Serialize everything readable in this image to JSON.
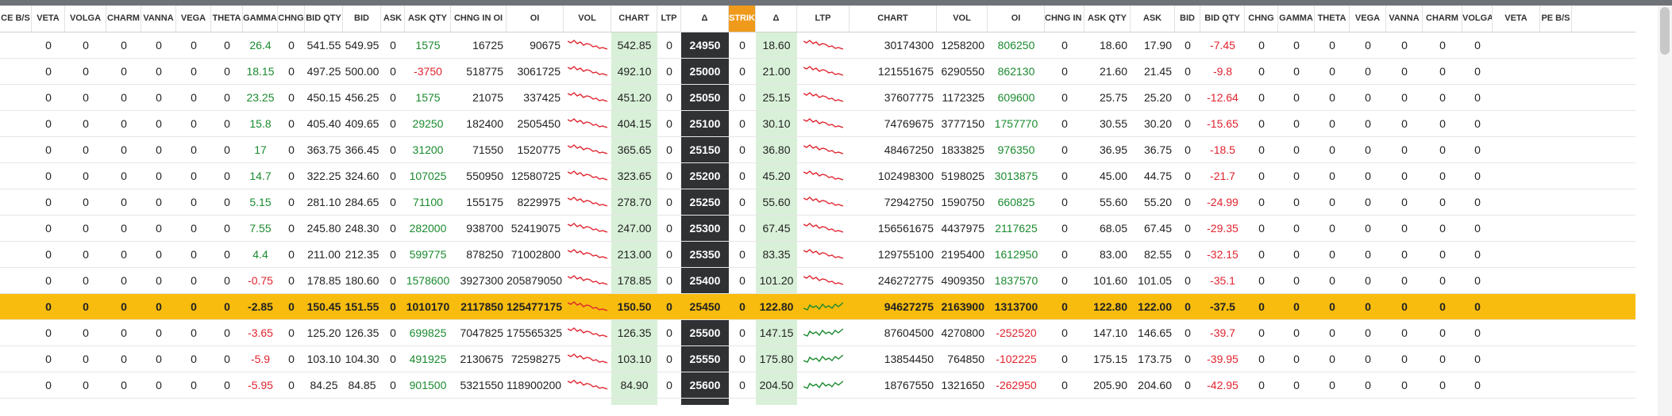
{
  "headers": [
    "CE B/S",
    "VETA",
    "VOLGA",
    "CHARM",
    "VANNA",
    "VEGA",
    "THETA",
    "GAMMA",
    "CHNG",
    "BID QTY",
    "BID",
    "ASK",
    "ASK QTY",
    "CHNG IN OI",
    "OI",
    "VOL",
    "CHART",
    "LTP",
    "Δ",
    "STRIKE",
    "Δ",
    "LTP",
    "CHART",
    "VOL",
    "OI",
    "CHNG IN OI",
    "ASK QTY",
    "ASK",
    "BID",
    "BID QTY",
    "CHNG",
    "GAMMA",
    "THETA",
    "VEGA",
    "VANNA",
    "CHARM",
    "VOLGA",
    "VETA",
    "PE B/S"
  ],
  "colors": {
    "strike_header": "#ef9a1a",
    "atm_row": "#f7bc0e",
    "positive": "#1a8a2e",
    "negative": "#e0232e",
    "ltp_bg": "#d8f0d8",
    "strike_bg": "#2f3133"
  },
  "rows": [
    {
      "strike": "24950",
      "atm": false,
      "ce": {
        "veta": "0",
        "volga": "0",
        "charm": "0",
        "vanna": "0",
        "vega": "0",
        "theta": "0",
        "gamma": "26.4",
        "gamma_sign": "pos",
        "chng": "0",
        "bid_qty": "541.55",
        "bid": "549.95",
        "ask": "0",
        "ask_qty": "1575",
        "ask_qty_sign": "pos",
        "chng_oi": "16725",
        "oi": "90675",
        "ltp": "542.85",
        "chart_trend": "down"
      },
      "center": {
        "delta_ce": "0",
        "delta_pe": "0",
        "ltp_pe": "18.60"
      },
      "pe": {
        "chart_trend": "down",
        "vol": "30174300",
        "oi": "1258200",
        "chng_oi": "806250",
        "chng_oi_sign": "pos",
        "ask_qty": "0",
        "ask": "18.60",
        "bid": "17.90",
        "bid_qty": "0",
        "chng": "-7.45",
        "chng_sign": "neg",
        "gamma": "0",
        "theta": "0",
        "vega": "0",
        "vanna": "0",
        "charm": "0",
        "volga": "0",
        "veta": "0"
      }
    },
    {
      "strike": "25000",
      "atm": false,
      "ce": {
        "veta": "0",
        "volga": "0",
        "charm": "0",
        "vanna": "0",
        "vega": "0",
        "theta": "0",
        "gamma": "18.15",
        "gamma_sign": "pos",
        "chng": "0",
        "bid_qty": "497.25",
        "bid": "500.00",
        "ask": "0",
        "ask_qty": "-3750",
        "ask_qty_sign": "neg",
        "chng_oi": "518775",
        "oi": "3061725",
        "ltp": "492.10",
        "chart_trend": "down"
      },
      "center": {
        "delta_ce": "0",
        "delta_pe": "0",
        "ltp_pe": "21.00"
      },
      "pe": {
        "chart_trend": "down",
        "vol": "121551675",
        "oi": "6290550",
        "chng_oi": "862130",
        "chng_oi_sign": "pos",
        "ask_qty": "0",
        "ask": "21.60",
        "bid": "21.45",
        "bid_qty": "0",
        "chng": "-9.8",
        "chng_sign": "neg",
        "gamma": "0",
        "theta": "0",
        "vega": "0",
        "vanna": "0",
        "charm": "0",
        "volga": "0",
        "veta": "0"
      }
    },
    {
      "strike": "25050",
      "atm": false,
      "ce": {
        "veta": "0",
        "volga": "0",
        "charm": "0",
        "vanna": "0",
        "vega": "0",
        "theta": "0",
        "gamma": "23.25",
        "gamma_sign": "pos",
        "chng": "0",
        "bid_qty": "450.15",
        "bid": "456.25",
        "ask": "0",
        "ask_qty": "1575",
        "ask_qty_sign": "pos",
        "chng_oi": "21075",
        "oi": "337425",
        "ltp": "451.20",
        "chart_trend": "down"
      },
      "center": {
        "delta_ce": "0",
        "delta_pe": "0",
        "ltp_pe": "25.15"
      },
      "pe": {
        "chart_trend": "down",
        "vol": "37607775",
        "oi": "1172325",
        "chng_oi": "609600",
        "chng_oi_sign": "pos",
        "ask_qty": "0",
        "ask": "25.75",
        "bid": "25.20",
        "bid_qty": "0",
        "chng": "-12.64",
        "chng_sign": "neg",
        "gamma": "0",
        "theta": "0",
        "vega": "0",
        "vanna": "0",
        "charm": "0",
        "volga": "0",
        "veta": "0"
      }
    },
    {
      "strike": "25100",
      "atm": false,
      "ce": {
        "veta": "0",
        "volga": "0",
        "charm": "0",
        "vanna": "0",
        "vega": "0",
        "theta": "0",
        "gamma": "15.8",
        "gamma_sign": "pos",
        "chng": "0",
        "bid_qty": "405.40",
        "bid": "409.65",
        "ask": "0",
        "ask_qty": "29250",
        "ask_qty_sign": "pos",
        "chng_oi": "182400",
        "oi": "2505450",
        "ltp": "404.15",
        "chart_trend": "down"
      },
      "center": {
        "delta_ce": "0",
        "delta_pe": "0",
        "ltp_pe": "30.10"
      },
      "pe": {
        "chart_trend": "down",
        "vol": "74769675",
        "oi": "3777150",
        "chng_oi": "1757770",
        "chng_oi_sign": "pos",
        "ask_qty": "0",
        "ask": "30.55",
        "bid": "30.20",
        "bid_qty": "0",
        "chng": "-15.65",
        "chng_sign": "neg",
        "gamma": "0",
        "theta": "0",
        "vega": "0",
        "vanna": "0",
        "charm": "0",
        "volga": "0",
        "veta": "0"
      }
    },
    {
      "strike": "25150",
      "atm": false,
      "ce": {
        "veta": "0",
        "volga": "0",
        "charm": "0",
        "vanna": "0",
        "vega": "0",
        "theta": "0",
        "gamma": "17",
        "gamma_sign": "pos",
        "chng": "0",
        "bid_qty": "363.75",
        "bid": "366.45",
        "ask": "0",
        "ask_qty": "31200",
        "ask_qty_sign": "pos",
        "chng_oi": "71550",
        "oi": "1520775",
        "ltp": "365.65",
        "chart_trend": "down"
      },
      "center": {
        "delta_ce": "0",
        "delta_pe": "0",
        "ltp_pe": "36.80"
      },
      "pe": {
        "chart_trend": "down",
        "vol": "48467250",
        "oi": "1833825",
        "chng_oi": "976350",
        "chng_oi_sign": "pos",
        "ask_qty": "0",
        "ask": "36.95",
        "bid": "36.75",
        "bid_qty": "0",
        "chng": "-18.5",
        "chng_sign": "neg",
        "gamma": "0",
        "theta": "0",
        "vega": "0",
        "vanna": "0",
        "charm": "0",
        "volga": "0",
        "veta": "0"
      }
    },
    {
      "strike": "25200",
      "atm": false,
      "ce": {
        "veta": "0",
        "volga": "0",
        "charm": "0",
        "vanna": "0",
        "vega": "0",
        "theta": "0",
        "gamma": "14.7",
        "gamma_sign": "pos",
        "chng": "0",
        "bid_qty": "322.25",
        "bid": "324.60",
        "ask": "0",
        "ask_qty": "107025",
        "ask_qty_sign": "pos",
        "chng_oi": "550950",
        "oi": "12580725",
        "ltp": "323.65",
        "chart_trend": "down"
      },
      "center": {
        "delta_ce": "0",
        "delta_pe": "0",
        "ltp_pe": "45.20"
      },
      "pe": {
        "chart_trend": "down",
        "vol": "102498300",
        "oi": "5198025",
        "chng_oi": "3013875",
        "chng_oi_sign": "pos",
        "ask_qty": "0",
        "ask": "45.00",
        "bid": "44.75",
        "bid_qty": "0",
        "chng": "-21.7",
        "chng_sign": "neg",
        "gamma": "0",
        "theta": "0",
        "vega": "0",
        "vanna": "0",
        "charm": "0",
        "volga": "0",
        "veta": "0"
      }
    },
    {
      "strike": "25250",
      "atm": false,
      "ce": {
        "veta": "0",
        "volga": "0",
        "charm": "0",
        "vanna": "0",
        "vega": "0",
        "theta": "0",
        "gamma": "5.15",
        "gamma_sign": "pos",
        "chng": "0",
        "bid_qty": "281.10",
        "bid": "284.65",
        "ask": "0",
        "ask_qty": "71100",
        "ask_qty_sign": "pos",
        "chng_oi": "155175",
        "oi": "8229975",
        "ltp": "278.70",
        "chart_trend": "down"
      },
      "center": {
        "delta_ce": "0",
        "delta_pe": "0",
        "ltp_pe": "55.60"
      },
      "pe": {
        "chart_trend": "down",
        "vol": "72942750",
        "oi": "1590750",
        "chng_oi": "660825",
        "chng_oi_sign": "pos",
        "ask_qty": "0",
        "ask": "55.60",
        "bid": "55.20",
        "bid_qty": "0",
        "chng": "-24.99",
        "chng_sign": "neg",
        "gamma": "0",
        "theta": "0",
        "vega": "0",
        "vanna": "0",
        "charm": "0",
        "volga": "0",
        "veta": "0"
      }
    },
    {
      "strike": "25300",
      "atm": false,
      "ce": {
        "veta": "0",
        "volga": "0",
        "charm": "0",
        "vanna": "0",
        "vega": "0",
        "theta": "0",
        "gamma": "7.55",
        "gamma_sign": "pos",
        "chng": "0",
        "bid_qty": "245.80",
        "bid": "248.30",
        "ask": "0",
        "ask_qty": "282000",
        "ask_qty_sign": "pos",
        "chng_oi": "938700",
        "oi": "52419075",
        "ltp": "247.00",
        "chart_trend": "down"
      },
      "center": {
        "delta_ce": "0",
        "delta_pe": "0",
        "ltp_pe": "67.45"
      },
      "pe": {
        "chart_trend": "down",
        "vol": "156561675",
        "oi": "4437975",
        "chng_oi": "2117625",
        "chng_oi_sign": "pos",
        "ask_qty": "0",
        "ask": "68.05",
        "bid": "67.45",
        "bid_qty": "0",
        "chng": "-29.35",
        "chng_sign": "neg",
        "gamma": "0",
        "theta": "0",
        "vega": "0",
        "vanna": "0",
        "charm": "0",
        "volga": "0",
        "veta": "0"
      }
    },
    {
      "strike": "25350",
      "atm": false,
      "ce": {
        "veta": "0",
        "volga": "0",
        "charm": "0",
        "vanna": "0",
        "vega": "0",
        "theta": "0",
        "gamma": "4.4",
        "gamma_sign": "pos",
        "chng": "0",
        "bid_qty": "211.00",
        "bid": "212.35",
        "ask": "0",
        "ask_qty": "599775",
        "ask_qty_sign": "pos",
        "chng_oi": "878250",
        "oi": "71002800",
        "ltp": "213.00",
        "chart_trend": "down"
      },
      "center": {
        "delta_ce": "0",
        "delta_pe": "0",
        "ltp_pe": "83.35"
      },
      "pe": {
        "chart_trend": "down",
        "vol": "129755100",
        "oi": "2195400",
        "chng_oi": "1612950",
        "chng_oi_sign": "pos",
        "ask_qty": "0",
        "ask": "83.00",
        "bid": "82.55",
        "bid_qty": "0",
        "chng": "-32.15",
        "chng_sign": "neg",
        "gamma": "0",
        "theta": "0",
        "vega": "0",
        "vanna": "0",
        "charm": "0",
        "volga": "0",
        "veta": "0"
      }
    },
    {
      "strike": "25400",
      "atm": false,
      "ce": {
        "veta": "0",
        "volga": "0",
        "charm": "0",
        "vanna": "0",
        "vega": "0",
        "theta": "0",
        "gamma": "-0.75",
        "gamma_sign": "neg",
        "chng": "0",
        "bid_qty": "178.85",
        "bid": "180.60",
        "ask": "0",
        "ask_qty": "1578600",
        "ask_qty_sign": "pos",
        "chng_oi": "3927300",
        "oi": "205879050",
        "ltp": "178.85",
        "chart_trend": "down"
      },
      "center": {
        "delta_ce": "0",
        "delta_pe": "0",
        "ltp_pe": "101.20"
      },
      "pe": {
        "chart_trend": "down",
        "vol": "246272775",
        "oi": "4909350",
        "chng_oi": "1837570",
        "chng_oi_sign": "pos",
        "ask_qty": "0",
        "ask": "101.60",
        "bid": "101.05",
        "bid_qty": "0",
        "chng": "-35.1",
        "chng_sign": "neg",
        "gamma": "0",
        "theta": "0",
        "vega": "0",
        "vanna": "0",
        "charm": "0",
        "volga": "0",
        "veta": "0"
      }
    },
    {
      "strike": "25450",
      "atm": true,
      "ce": {
        "veta": "0",
        "volga": "0",
        "charm": "0",
        "vanna": "0",
        "vega": "0",
        "theta": "0",
        "gamma": "-2.85",
        "gamma_sign": "none",
        "chng": "0",
        "bid_qty": "150.45",
        "bid": "151.55",
        "ask": "0",
        "ask_qty": "1010170",
        "ask_qty_sign": "none",
        "chng_oi": "2117850",
        "oi": "125477175",
        "ltp": "150.50",
        "chart_trend": "down"
      },
      "center": {
        "delta_ce": "0",
        "delta_pe": "0",
        "ltp_pe": "122.80"
      },
      "pe": {
        "chart_trend": "up",
        "vol": "94627275",
        "oi": "2163900",
        "chng_oi": "1313700",
        "chng_oi_sign": "none",
        "ask_qty": "0",
        "ask": "122.80",
        "bid": "122.00",
        "bid_qty": "0",
        "chng": "-37.5",
        "chng_sign": "none",
        "gamma": "0",
        "theta": "0",
        "vega": "0",
        "vanna": "0",
        "charm": "0",
        "volga": "0",
        "veta": "0"
      }
    },
    {
      "strike": "25500",
      "atm": false,
      "ce": {
        "veta": "0",
        "volga": "0",
        "charm": "0",
        "vanna": "0",
        "vega": "0",
        "theta": "0",
        "gamma": "-3.65",
        "gamma_sign": "neg",
        "chng": "0",
        "bid_qty": "125.20",
        "bid": "126.35",
        "ask": "0",
        "ask_qty": "699825",
        "ask_qty_sign": "pos",
        "chng_oi": "7047825",
        "oi": "175565325",
        "ltp": "126.35",
        "chart_trend": "down"
      },
      "center": {
        "delta_ce": "0",
        "delta_pe": "0",
        "ltp_pe": "147.15"
      },
      "pe": {
        "chart_trend": "up",
        "vol": "87604500",
        "oi": "4270800",
        "chng_oi": "-252520",
        "chng_oi_sign": "neg",
        "ask_qty": "0",
        "ask": "147.10",
        "bid": "146.65",
        "bid_qty": "0",
        "chng": "-39.7",
        "chng_sign": "neg",
        "gamma": "0",
        "theta": "0",
        "vega": "0",
        "vanna": "0",
        "charm": "0",
        "volga": "0",
        "veta": "0"
      }
    },
    {
      "strike": "25550",
      "atm": false,
      "ce": {
        "veta": "0",
        "volga": "0",
        "charm": "0",
        "vanna": "0",
        "vega": "0",
        "theta": "0",
        "gamma": "-5.9",
        "gamma_sign": "neg",
        "chng": "0",
        "bid_qty": "103.10",
        "bid": "104.30",
        "ask": "0",
        "ask_qty": "491925",
        "ask_qty_sign": "pos",
        "chng_oi": "2130675",
        "oi": "72598275",
        "ltp": "103.10",
        "chart_trend": "down"
      },
      "center": {
        "delta_ce": "0",
        "delta_pe": "0",
        "ltp_pe": "175.80"
      },
      "pe": {
        "chart_trend": "up",
        "vol": "13854450",
        "oi": "764850",
        "chng_oi": "-102225",
        "chng_oi_sign": "neg",
        "ask_qty": "0",
        "ask": "175.15",
        "bid": "173.75",
        "bid_qty": "0",
        "chng": "-39.95",
        "chng_sign": "neg",
        "gamma": "0",
        "theta": "0",
        "vega": "0",
        "vanna": "0",
        "charm": "0",
        "volga": "0",
        "veta": "0"
      }
    },
    {
      "strike": "25600",
      "atm": false,
      "ce": {
        "veta": "0",
        "volga": "0",
        "charm": "0",
        "vanna": "0",
        "vega": "0",
        "theta": "0",
        "gamma": "-5.95",
        "gamma_sign": "neg",
        "chng": "0",
        "bid_qty": "84.25",
        "bid": "84.85",
        "ask": "0",
        "ask_qty": "901500",
        "ask_qty_sign": "pos",
        "chng_oi": "5321550",
        "oi": "118900200",
        "ltp": "84.90",
        "chart_trend": "down"
      },
      "center": {
        "delta_ce": "0",
        "delta_pe": "0",
        "ltp_pe": "204.50"
      },
      "pe": {
        "chart_trend": "up",
        "vol": "18767550",
        "oi": "1321650",
        "chng_oi": "-262950",
        "chng_oi_sign": "neg",
        "ask_qty": "0",
        "ask": "205.90",
        "bid": "204.60",
        "bid_qty": "0",
        "chng": "-42.95",
        "chng_sign": "neg",
        "gamma": "0",
        "theta": "0",
        "vega": "0",
        "vanna": "0",
        "charm": "0",
        "volga": "0",
        "veta": "0"
      }
    }
  ]
}
